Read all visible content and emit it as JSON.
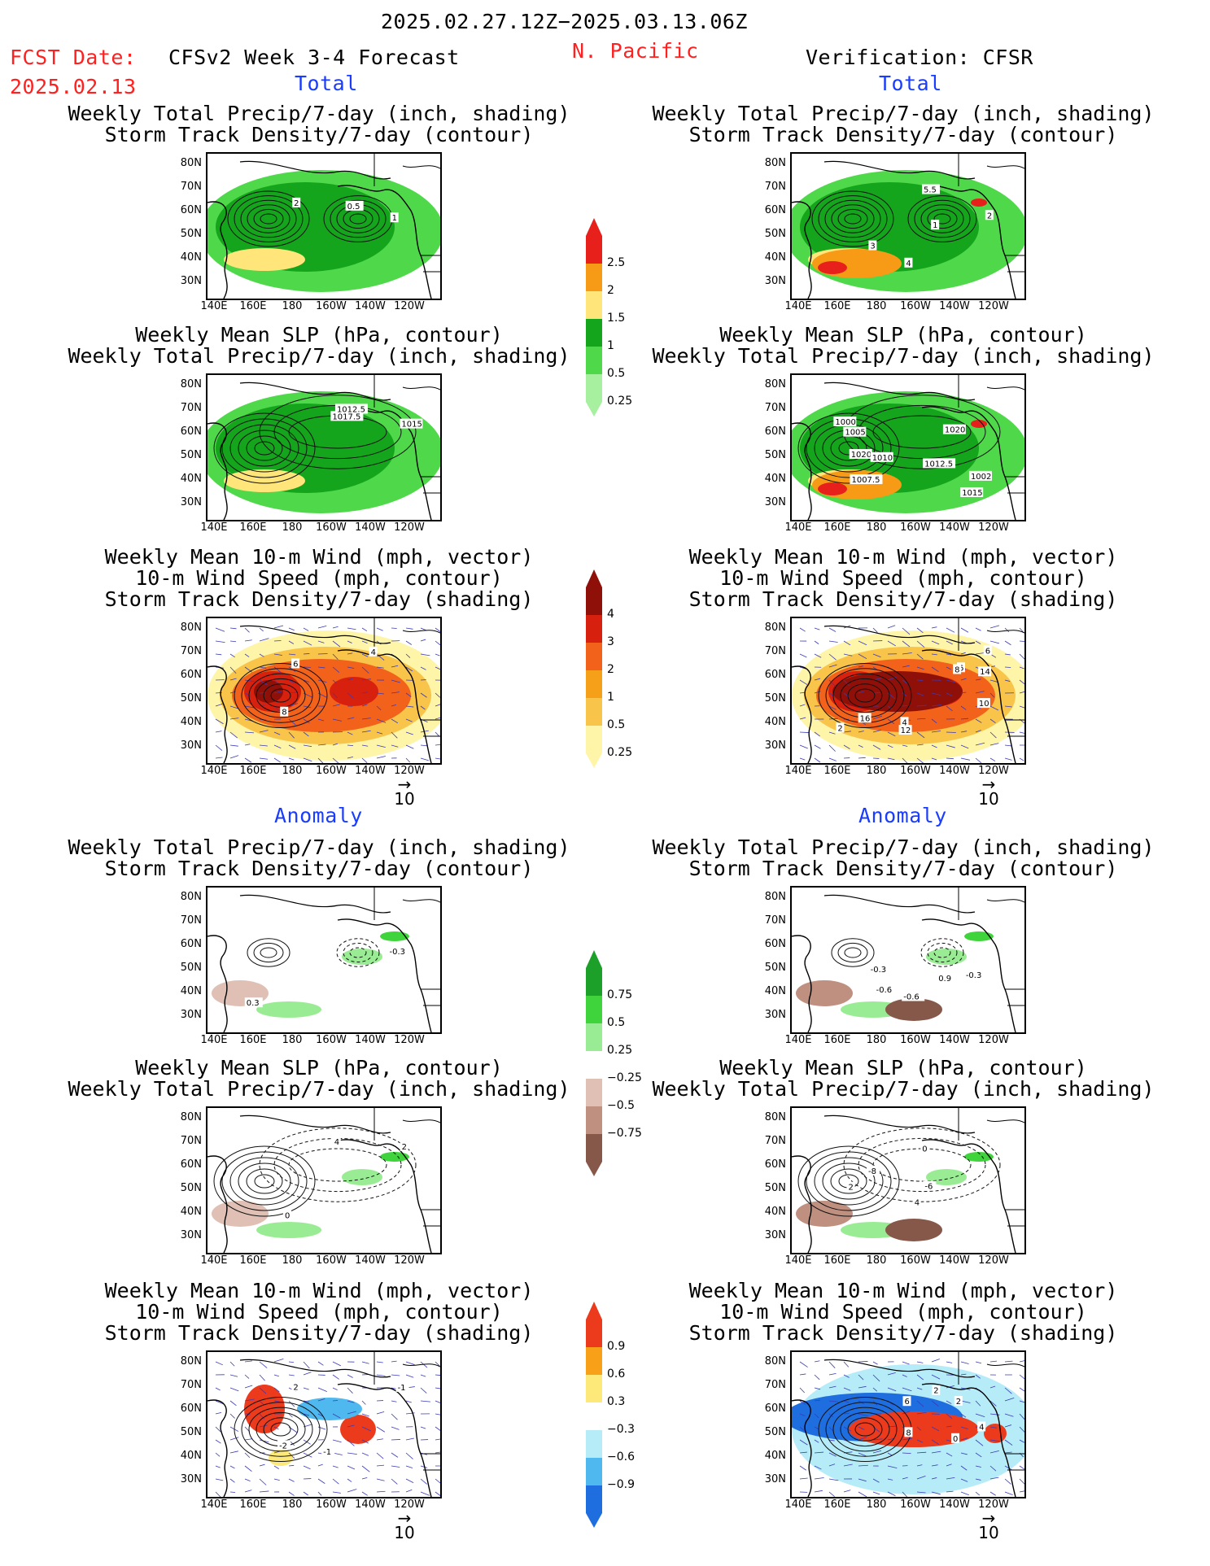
{
  "header": {
    "date_range": "2025.02.27.12Z−2025.03.13.06Z",
    "fcst_label": "FCST Date:",
    "fcst_date": "2025.02.13",
    "model_title": "CFSv2 Week 3-4 Forecast",
    "region": "N. Pacific",
    "verification": "Verification: CFSR"
  },
  "sections": {
    "total": "Total",
    "anomaly": "Anomaly"
  },
  "titles": {
    "precip_storm": [
      "Weekly Total Precip/7-day (inch, shading)",
      "Storm Track Density/7-day (contour)"
    ],
    "slp_precip": [
      "Weekly Mean SLP (hPa, contour)",
      "Weekly Total Precip/7-day (inch, shading)"
    ],
    "wind_storm": [
      "Weekly Mean 10-m Wind (mph, vector)",
      "10-m Wind Speed (mph, contour)",
      "Storm Track Density/7-day (shading)"
    ]
  },
  "axes": {
    "lat": [
      "80N",
      "70N",
      "60N",
      "50N",
      "40N",
      "30N"
    ],
    "lon": [
      "140E",
      "160E",
      "180",
      "160W",
      "140W",
      "120W"
    ]
  },
  "vector_ref": "10",
  "colorbars": [
    {
      "name": "precip-total",
      "labels": [
        "2.5",
        "2",
        "1.5",
        "1",
        "0.5",
        "0.25"
      ],
      "colors": [
        "#e8201c",
        "#f79a15",
        "#ffe57a",
        "#15a51d",
        "#4fd84a",
        "#a6f0a0"
      ]
    },
    {
      "name": "storm-total",
      "labels": [
        "4",
        "3",
        "2",
        "1",
        "0.5",
        "0.25"
      ],
      "colors": [
        "#8f1008",
        "#d8200e",
        "#f2621b",
        "#f6a01a",
        "#f8c44a",
        "#fff5a8"
      ]
    },
    {
      "name": "precip-anom",
      "labels": [
        "0.75",
        "0.5",
        "0.25",
        "−0.25",
        "−0.5",
        "−0.75"
      ],
      "colors": [
        "#1ca02a",
        "#3fd43c",
        "#9aec94",
        "#ffffff",
        "#e0c0b4",
        "#bf8f80",
        "#86584a"
      ]
    },
    {
      "name": "storm-anom",
      "labels": [
        "0.9",
        "0.6",
        "0.3",
        "−0.3",
        "−0.6",
        "−0.9"
      ],
      "colors": [
        "#ec3a1c",
        "#f7a018",
        "#fde87a",
        "#ffffff",
        "#b5ecf8",
        "#4fb8ee",
        "#1e6ee0"
      ]
    }
  ],
  "panels": {
    "fcst_total_precip": {
      "contour_labels": [
        "2",
        "1",
        "0.5"
      ]
    },
    "fcst_total_slp": {
      "contour_labels": [
        "1017.5",
        "1012.5",
        "1015"
      ]
    },
    "fcst_total_wind": {
      "contour_labels": [
        "4",
        "8",
        "6"
      ]
    },
    "ver_total_precip": {
      "contour_labels": [
        "5.5",
        "4",
        "3",
        "1",
        "2"
      ]
    },
    "ver_total_slp": {
      "contour_labels": [
        "1015",
        "1020",
        "1012.5",
        "1000",
        "1002",
        "1005",
        "1007.5",
        "1010",
        "1020"
      ]
    },
    "ver_total_wind": {
      "contour_labels": [
        "2",
        "6",
        "10",
        "12",
        "8",
        "16",
        "14",
        "6",
        "4"
      ]
    },
    "fcst_anom_precip": {
      "contour_labels": [
        "0.3",
        "-0.3"
      ]
    },
    "fcst_anom_slp": {
      "contour_labels": [
        "0",
        "4",
        "2"
      ]
    },
    "fcst_anom_wind": {
      "contour_labels": [
        "-1",
        "-2",
        "2",
        "-1"
      ]
    },
    "ver_anom_precip": {
      "contour_labels": [
        "-0.6",
        "-0.6",
        "-0.3",
        "-0.3",
        "0.9"
      ]
    },
    "ver_anom_slp": {
      "contour_labels": [
        "4",
        "2",
        "-6",
        "-8",
        "0"
      ]
    },
    "ver_anom_wind": {
      "contour_labels": [
        "0",
        "2",
        "4",
        "2",
        "8",
        "6"
      ]
    }
  }
}
